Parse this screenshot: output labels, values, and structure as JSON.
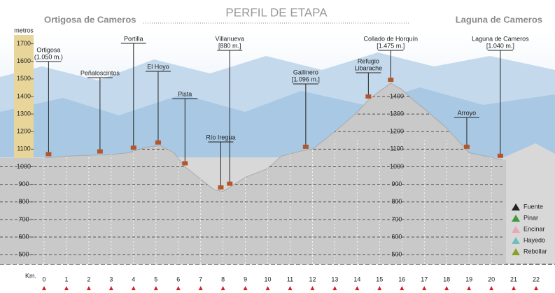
{
  "chart_data": {
    "type": "area",
    "title": "PERFIL DE ETAPA",
    "start_label": "Ortigosa de Cameros",
    "end_label": "Laguna de Cameros",
    "y_label": "metros",
    "x_label": "Km.",
    "xlim": [
      0,
      22
    ],
    "ylim": [
      445,
      1750
    ],
    "xticks": [
      0,
      1,
      2,
      3,
      4,
      5,
      6,
      7,
      8,
      9,
      10,
      11,
      12,
      13,
      14,
      15,
      16,
      17,
      18,
      19,
      20,
      21,
      22
    ],
    "yticks": [
      500,
      600,
      700,
      800,
      900,
      1000,
      1100,
      1200,
      1300,
      1400,
      1500,
      1600,
      1700
    ],
    "color": "#c9c9c9",
    "x": [
      0,
      1,
      2,
      3,
      3.8,
      4.5,
      5.2,
      5.8,
      6.3,
      7,
      7.6,
      8,
      8.5,
      9,
      10,
      10.6,
      11.5,
      12,
      13,
      14,
      14.5,
      15,
      15.5,
      16,
      16.5,
      17,
      18,
      18.5,
      19,
      20.5
    ],
    "values": [
      1050,
      1060,
      1065,
      1070,
      1080,
      1110,
      1120,
      1080,
      1000,
      930,
      870,
      860,
      900,
      940,
      990,
      1060,
      1090,
      1100,
      1200,
      1310,
      1380,
      1430,
      1475,
      1440,
      1380,
      1330,
      1220,
      1150,
      1080,
      1040
    ],
    "annotations": [
      {
        "name": "Ortigosa",
        "sub": "(1.050 m.)",
        "x": 0.2
      },
      {
        "name": "Peñaloscintos",
        "x": 2.5
      },
      {
        "name": "Portilla",
        "x": 4
      },
      {
        "name": "El Hoyo",
        "x": 5.1
      },
      {
        "name": "Pista",
        "x": 6.3
      },
      {
        "name": "Río Iregua",
        "x": 7.9
      },
      {
        "name": "Villanueva",
        "sub": "[880 m.]",
        "x": 8.3
      },
      {
        "name": "Gallinero",
        "sub": "[1.096 m.]",
        "x": 11.7
      },
      {
        "name": "Refugio",
        "sub": "Libarache",
        "x": 14.5
      },
      {
        "name": "Collado de Horquín",
        "sub": "[1.475 m.]",
        "x": 15.5
      },
      {
        "name": "Arroyo",
        "x": 18.9
      },
      {
        "name": "Laguna de Cameros",
        "sub": "[1.040 m.]",
        "x": 20.4
      }
    ],
    "legend": [
      {
        "name": "Fuente",
        "color": "#222222"
      },
      {
        "name": "Pinar",
        "color": "#3f9a3a"
      },
      {
        "name": "Encinar",
        "color": "#e8a8b8"
      },
      {
        "name": "Hayedo",
        "color": "#6cc0b8"
      },
      {
        "name": "Rebollar",
        "color": "#8aa22a"
      }
    ]
  }
}
